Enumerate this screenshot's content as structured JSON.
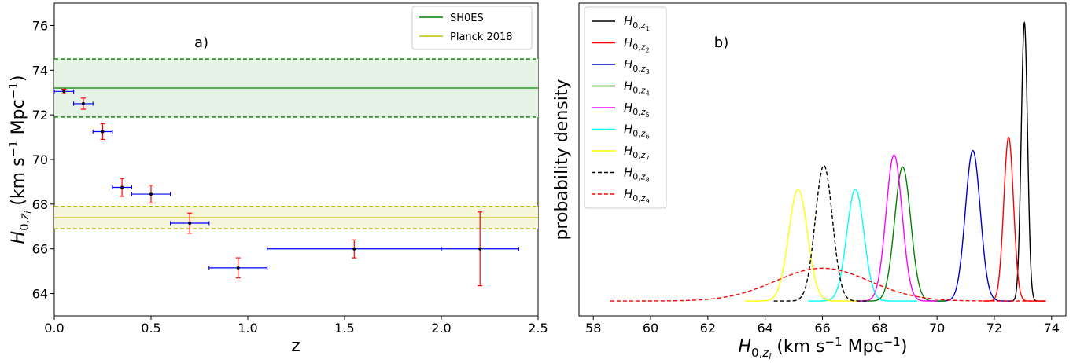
{
  "chart_data": [
    {
      "type": "scatter",
      "panel_label": "a)",
      "xlabel": "z",
      "ylabel": "H0,zi (km s−1 Mpc−1)",
      "xlim": [
        0.0,
        2.5
      ],
      "ylim": [
        63.0,
        77.0
      ],
      "xticks": [
        "0.0",
        "0.5",
        "1.0",
        "1.5",
        "2.0",
        "2.5"
      ],
      "yticks": [
        "64",
        "66",
        "68",
        "70",
        "72",
        "74",
        "76"
      ],
      "points": [
        {
          "z": 0.05,
          "xerr": 0.05,
          "h": 73.05,
          "yerr": 0.1
        },
        {
          "z": 0.15,
          "xerr": 0.05,
          "h": 72.5,
          "yerr": 0.25
        },
        {
          "z": 0.25,
          "xerr": 0.05,
          "h": 71.25,
          "yerr": 0.35
        },
        {
          "z": 0.35,
          "xerr": 0.05,
          "h": 68.75,
          "yerr": 0.4
        },
        {
          "z": 0.5,
          "xerr": 0.1,
          "h": 68.45,
          "yerr": 0.4
        },
        {
          "z": 0.7,
          "xerr": 0.1,
          "h": 67.15,
          "yerr": 0.45
        },
        {
          "z": 0.95,
          "xerr": 0.15,
          "h": 65.15,
          "yerr": 0.45
        },
        {
          "z": 1.55,
          "xerr": 0.45,
          "h": 66.0,
          "yerr": 0.4
        },
        {
          "z": 2.2,
          "xerr": 0.2,
          "h": 66.0,
          "yerr": 1.65
        }
      ],
      "bands": [
        {
          "name": "SH0ES",
          "value": 73.2,
          "low": 71.9,
          "high": 74.5,
          "color": "#008000",
          "fill": "#e6f2e6"
        },
        {
          "name": "Planck 2018",
          "value": 67.4,
          "low": 66.9,
          "high": 67.9,
          "color": "#bfbf00",
          "fill": "#f5f5dc"
        }
      ],
      "legend_position": "top-right",
      "colors": {
        "xerr": "#0000ff",
        "yerr": "#ff0000",
        "point": "#000000"
      }
    },
    {
      "type": "line",
      "panel_label": "b)",
      "xlabel": "H0,zi (km s−1 Mpc−1)",
      "ylabel": "probability density",
      "xlim": [
        57.5,
        74.5
      ],
      "ylim": [
        -0.05,
        1.0
      ],
      "xticks": [
        "58",
        "60",
        "62",
        "64",
        "66",
        "68",
        "70",
        "72",
        "74"
      ],
      "legend_position": "top-left",
      "series": [
        {
          "name": "z1",
          "mu": 73.05,
          "sigma": 0.11,
          "peak": 0.935,
          "range": [
            72.5,
            73.8
          ],
          "color": "#000000",
          "dash": false
        },
        {
          "name": "z2",
          "mu": 72.5,
          "sigma": 0.17,
          "peak": 0.55,
          "range": [
            71.6,
            73.8
          ],
          "color": "#ff0000",
          "dash": false
        },
        {
          "name": "z3",
          "mu": 71.25,
          "sigma": 0.26,
          "peak": 0.505,
          "range": [
            69.9,
            72.6
          ],
          "color": "#0000cc",
          "dash": false
        },
        {
          "name": "z4",
          "mu": 68.8,
          "sigma": 0.28,
          "peak": 0.45,
          "range": [
            67.3,
            70.3
          ],
          "color": "#008000",
          "dash": false
        },
        {
          "name": "z5",
          "mu": 68.5,
          "sigma": 0.28,
          "peak": 0.49,
          "range": [
            67.0,
            70.0
          ],
          "color": "#ff00ff",
          "dash": false
        },
        {
          "name": "z6",
          "mu": 67.15,
          "sigma": 0.3,
          "peak": 0.375,
          "range": [
            65.5,
            69.3
          ],
          "color": "#00ffff",
          "dash": false
        },
        {
          "name": "z7",
          "mu": 65.15,
          "sigma": 0.33,
          "peak": 0.375,
          "range": [
            63.3,
            67.3
          ],
          "color": "#ffff00",
          "dash": false
        },
        {
          "name": "z8",
          "mu": 66.05,
          "sigma": 0.3,
          "peak": 0.455,
          "range": [
            64.3,
            67.6
          ],
          "color": "#000000",
          "dash": true
        },
        {
          "name": "z9",
          "mu": 66.0,
          "sigma": 1.65,
          "peak": 0.11,
          "range": [
            58.6,
            73.8
          ],
          "color": "#ff0000",
          "dash": true
        }
      ]
    }
  ]
}
